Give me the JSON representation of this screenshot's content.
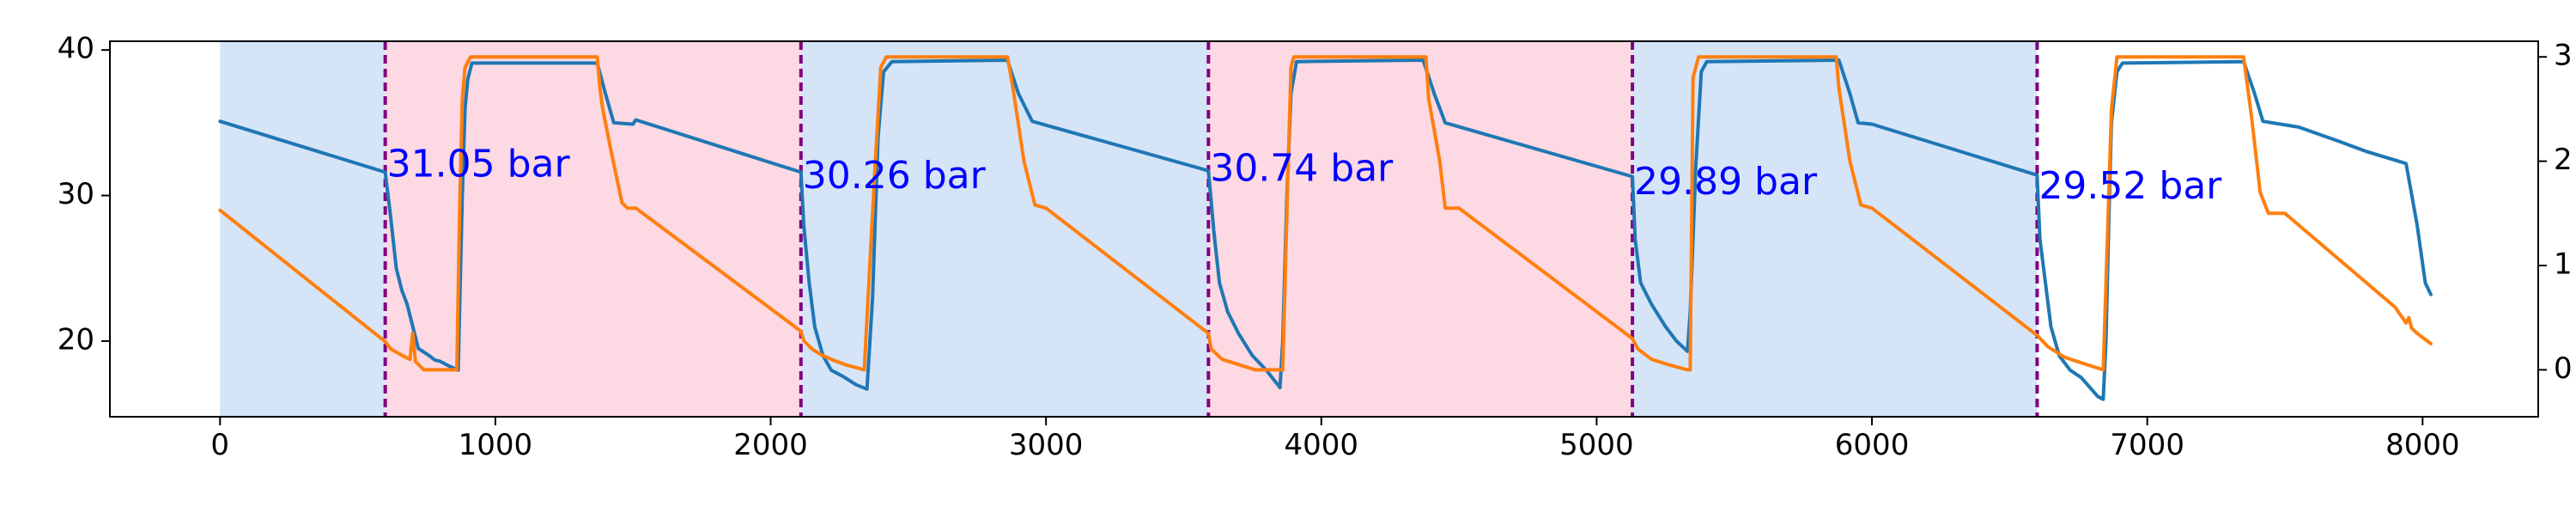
{
  "chart_data": {
    "type": "line",
    "title": "",
    "xlabel": "",
    "ylabel": "",
    "y2label": "",
    "xlim": [
      -400,
      8420
    ],
    "ylim": [
      14.8,
      40.6
    ],
    "y2lim": [
      -0.45,
      3.15
    ],
    "x_ticks": [
      0,
      1000,
      2000,
      3000,
      4000,
      5000,
      6000,
      7000,
      8000
    ],
    "x_tick_labels": [
      "0",
      "1000",
      "2000",
      "3000",
      "4000",
      "5000",
      "6000",
      "7000",
      "8000"
    ],
    "y_ticks": [
      20,
      30,
      40
    ],
    "y_tick_labels": [
      "20",
      "30",
      "40"
    ],
    "y2_ticks": [
      0,
      1,
      2,
      3
    ],
    "y2_tick_labels": [
      "0",
      "1",
      "2",
      "3"
    ],
    "grid": false,
    "legend": "none",
    "colors": {
      "series1": "#1f77b4",
      "series2": "#ff7f0e",
      "region_blue": "#d6e4f8",
      "region_pink": "#fcd9e3",
      "cycle_line": "#800080",
      "annotation": "#0000ff"
    },
    "regions": [
      {
        "x0": 0,
        "x1": 600,
        "color": "blue"
      },
      {
        "x0": 600,
        "x1": 2110,
        "color": "pink"
      },
      {
        "x0": 2110,
        "x1": 3590,
        "color": "blue"
      },
      {
        "x0": 3590,
        "x1": 5130,
        "color": "pink"
      },
      {
        "x0": 5130,
        "x1": 6600,
        "color": "blue"
      }
    ],
    "vlines": [
      600,
      2110,
      3590,
      5130,
      6600
    ],
    "annotations": [
      {
        "x": 600,
        "y": 32.0,
        "text": "31.05 bar"
      },
      {
        "x": 2110,
        "y": 31.2,
        "text": "30.26 bar"
      },
      {
        "x": 3590,
        "y": 31.7,
        "text": "30.74 bar"
      },
      {
        "x": 5130,
        "y": 30.8,
        "text": "29.89 bar"
      },
      {
        "x": 6600,
        "y": 30.5,
        "text": "29.52 bar"
      }
    ],
    "series": [
      {
        "axis": "left",
        "color": "blue",
        "points": [
          [
            0,
            35.1
          ],
          [
            600,
            31.6
          ],
          [
            620,
            28.5
          ],
          [
            640,
            25
          ],
          [
            660,
            23.5
          ],
          [
            680,
            22.5
          ],
          [
            700,
            21
          ],
          [
            720,
            19.5
          ],
          [
            760,
            19
          ],
          [
            780,
            18.7
          ],
          [
            800,
            18.6
          ],
          [
            830,
            18.3
          ],
          [
            865,
            18.0
          ],
          [
            870,
            22
          ],
          [
            880,
            30
          ],
          [
            890,
            36
          ],
          [
            900,
            38
          ],
          [
            915,
            39.1
          ],
          [
            1370,
            39.1
          ],
          [
            1400,
            37
          ],
          [
            1430,
            35
          ],
          [
            1500,
            34.9
          ],
          [
            1510,
            35.2
          ],
          [
            2110,
            31.6
          ],
          [
            2120,
            28
          ],
          [
            2140,
            24
          ],
          [
            2160,
            21
          ],
          [
            2190,
            19
          ],
          [
            2220,
            18
          ],
          [
            2260,
            17.6
          ],
          [
            2310,
            17.0
          ],
          [
            2350,
            16.7
          ],
          [
            2370,
            23
          ],
          [
            2390,
            34
          ],
          [
            2410,
            38.5
          ],
          [
            2440,
            39.2
          ],
          [
            2860,
            39.3
          ],
          [
            2900,
            37
          ],
          [
            2950,
            35.1
          ],
          [
            3590,
            31.7
          ],
          [
            3610,
            27.5
          ],
          [
            3630,
            24
          ],
          [
            3660,
            22
          ],
          [
            3700,
            20.5
          ],
          [
            3750,
            19
          ],
          [
            3800,
            18
          ],
          [
            3850,
            16.8
          ],
          [
            3860,
            20
          ],
          [
            3875,
            30
          ],
          [
            3890,
            37
          ],
          [
            3910,
            39.2
          ],
          [
            4370,
            39.3
          ],
          [
            4410,
            37
          ],
          [
            4450,
            35
          ],
          [
            5130,
            31.3
          ],
          [
            5140,
            27
          ],
          [
            5160,
            24
          ],
          [
            5200,
            22.5
          ],
          [
            5250,
            21
          ],
          [
            5290,
            20
          ],
          [
            5330,
            19.3
          ],
          [
            5340,
            22
          ],
          [
            5360,
            32
          ],
          [
            5380,
            38.5
          ],
          [
            5400,
            39.2
          ],
          [
            5880,
            39.3
          ],
          [
            5920,
            37
          ],
          [
            5950,
            35
          ],
          [
            6000,
            34.9
          ],
          [
            6600,
            31.4
          ],
          [
            6610,
            27
          ],
          [
            6630,
            24
          ],
          [
            6650,
            21
          ],
          [
            6680,
            19
          ],
          [
            6720,
            18
          ],
          [
            6760,
            17.5
          ],
          [
            6820,
            16.2
          ],
          [
            6840,
            16.0
          ],
          [
            6850,
            20
          ],
          [
            6860,
            28
          ],
          [
            6870,
            35
          ],
          [
            6890,
            38.5
          ],
          [
            6910,
            39.1
          ],
          [
            7350,
            39.2
          ],
          [
            7390,
            37
          ],
          [
            7420,
            35.1
          ],
          [
            7550,
            34.7
          ],
          [
            7700,
            33.7
          ],
          [
            7800,
            33.0
          ],
          [
            7940,
            32.2
          ],
          [
            7980,
            28
          ],
          [
            8010,
            24
          ],
          [
            8030,
            23.2
          ]
        ]
      },
      {
        "axis": "right",
        "color": "orange",
        "points": [
          [
            0,
            1.53
          ],
          [
            600,
            0.27
          ],
          [
            620,
            0.2
          ],
          [
            660,
            0.14
          ],
          [
            690,
            0.1
          ],
          [
            700,
            0.35
          ],
          [
            710,
            0.08
          ],
          [
            740,
            0.0
          ],
          [
            800,
            0.0
          ],
          [
            860,
            0.0
          ],
          [
            870,
            1.5
          ],
          [
            880,
            2.6
          ],
          [
            890,
            2.9
          ],
          [
            910,
            3.0
          ],
          [
            1370,
            3.0
          ],
          [
            1380,
            2.7
          ],
          [
            1390,
            2.5
          ],
          [
            1420,
            2.1
          ],
          [
            1460,
            1.6
          ],
          [
            1480,
            1.55
          ],
          [
            1510,
            1.55
          ],
          [
            2110,
            0.37
          ],
          [
            2120,
            0.28
          ],
          [
            2150,
            0.2
          ],
          [
            2180,
            0.15
          ],
          [
            2220,
            0.1
          ],
          [
            2270,
            0.05
          ],
          [
            2340,
            0.0
          ],
          [
            2380,
            2.0
          ],
          [
            2400,
            2.9
          ],
          [
            2420,
            3.0
          ],
          [
            2860,
            3.0
          ],
          [
            2880,
            2.7
          ],
          [
            2920,
            2.0
          ],
          [
            2960,
            1.58
          ],
          [
            3000,
            1.55
          ],
          [
            3590,
            0.35
          ],
          [
            3600,
            0.2
          ],
          [
            3640,
            0.1
          ],
          [
            3700,
            0.05
          ],
          [
            3760,
            0.0
          ],
          [
            3860,
            0.0
          ],
          [
            3880,
            2.0
          ],
          [
            3890,
            2.9
          ],
          [
            3900,
            3.0
          ],
          [
            4380,
            3.0
          ],
          [
            4390,
            2.6
          ],
          [
            4430,
            2.0
          ],
          [
            4450,
            1.55
          ],
          [
            4500,
            1.55
          ],
          [
            5130,
            0.3
          ],
          [
            5150,
            0.2
          ],
          [
            5200,
            0.1
          ],
          [
            5260,
            0.05
          ],
          [
            5330,
            0.0
          ],
          [
            5340,
            0.0
          ],
          [
            5350,
            2.8
          ],
          [
            5370,
            3.0
          ],
          [
            5870,
            3.0
          ],
          [
            5880,
            2.7
          ],
          [
            5920,
            2.0
          ],
          [
            5960,
            1.58
          ],
          [
            6000,
            1.55
          ],
          [
            6600,
            0.33
          ],
          [
            6640,
            0.22
          ],
          [
            6700,
            0.12
          ],
          [
            6780,
            0.05
          ],
          [
            6840,
            0.0
          ],
          [
            6870,
            2.5
          ],
          [
            6890,
            3.0
          ],
          [
            7350,
            3.0
          ],
          [
            7380,
            2.4
          ],
          [
            7410,
            1.7
          ],
          [
            7440,
            1.5
          ],
          [
            7500,
            1.5
          ],
          [
            7900,
            0.6
          ],
          [
            7940,
            0.45
          ],
          [
            7950,
            0.5
          ],
          [
            7960,
            0.4
          ],
          [
            7980,
            0.35
          ],
          [
            8030,
            0.25
          ]
        ]
      }
    ]
  }
}
